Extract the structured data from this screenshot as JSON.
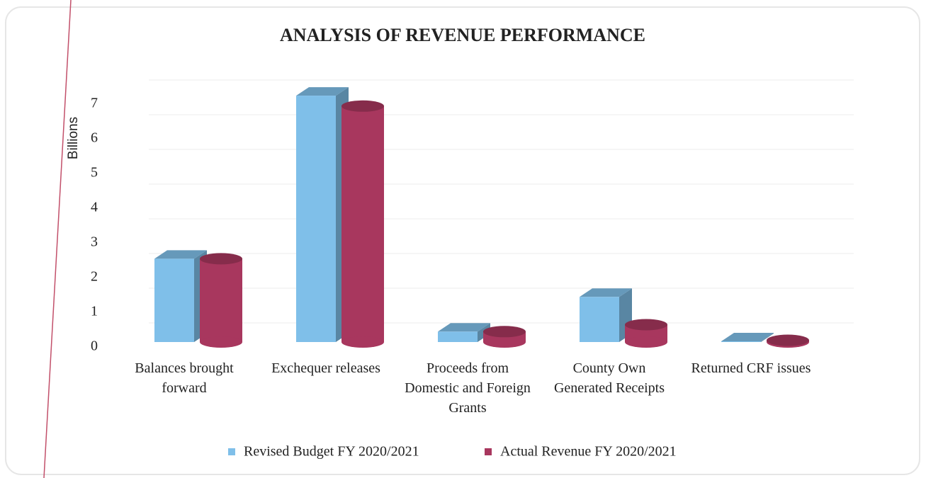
{
  "chart_data": {
    "type": "bar3d",
    "title": "ANALYSIS OF REVENUE PERFORMANCE",
    "y_label": "Billions",
    "categories": [
      "Balances brought forward",
      "Exchequer releases",
      "Proceeds from Domestic and Foreign Grants",
      "County Own Generated Receipts",
      "Returned CRF issues"
    ],
    "series": [
      {
        "name": "Revised Budget FY 2020/2021",
        "color": "#7fbfe9",
        "values": [
          2.4,
          7.1,
          0.3,
          1.3,
          0.02
        ]
      },
      {
        "name": "Actual Revenue FY 2020/2021",
        "color": "#a8375e",
        "values": [
          2.4,
          6.8,
          0.3,
          0.5,
          0.05
        ]
      }
    ],
    "ylim": [
      0,
      7
    ],
    "yticks": [
      0,
      1,
      2,
      3,
      4,
      5,
      6,
      7
    ],
    "grid": true,
    "legend": "bottom"
  }
}
